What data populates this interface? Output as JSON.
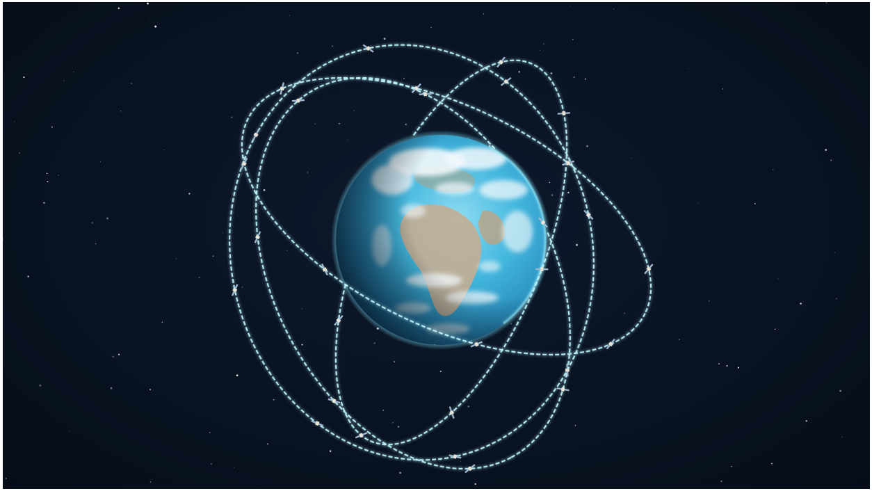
{
  "scene": {
    "title": "",
    "subject": "globe-with-satellite-orbits",
    "colors": {
      "space": "#081321",
      "orbit": "#bff6ff",
      "orbit_glow": "#58d8f3",
      "ocean": "#35b4df",
      "cloud": "#f1f7fb",
      "land": "#c2ae96",
      "satellite_body": "#e8e4d8",
      "satellite_panel": "#9fb6cf"
    },
    "orbit_count": 4,
    "satellite_count": 30
  }
}
